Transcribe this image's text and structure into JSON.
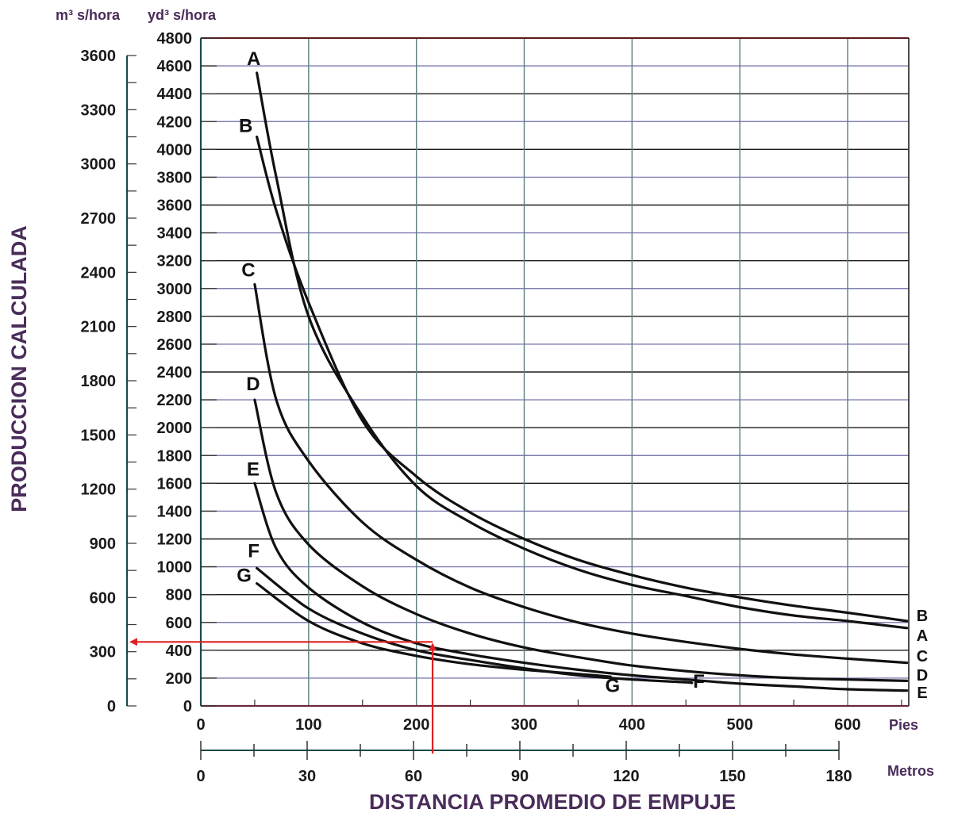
{
  "chart_data": {
    "type": "line",
    "ylabel": "PRODUCCION CALCULADA",
    "xlabel": "DISTANCIA PROMEDIO DE EMPUJE",
    "y_unit_primary": "yd³ s/hora",
    "y_unit_secondary": "m³ s/hora",
    "x_unit_primary": "Pies",
    "x_unit_secondary": "Metros",
    "ylim": [
      0,
      4800
    ],
    "xlim": [
      0,
      660
    ],
    "y_ticks": [
      "0",
      "200",
      "400",
      "600",
      "800",
      "1000",
      "1200",
      "1400",
      "1600",
      "1800",
      "2000",
      "2200",
      "2400",
      "2600",
      "2800",
      "3000",
      "3200",
      "3400",
      "3600",
      "3800",
      "4000",
      "4200",
      "4400",
      "4600",
      "4800"
    ],
    "y_secondary_ticks": [
      "0",
      "300",
      "600",
      "900",
      "1200",
      "1500",
      "1800",
      "2100",
      "2400",
      "2700",
      "3000",
      "3300",
      "3600"
    ],
    "x_ticks": [
      "0",
      "100",
      "200",
      "300",
      "400",
      "500",
      "600"
    ],
    "x_secondary_ticks": [
      "0",
      "30",
      "60",
      "90",
      "120",
      "150",
      "180"
    ],
    "grid": true,
    "series": [
      {
        "name": "A",
        "color": "#111111",
        "x": [
          52,
          70,
          100,
          150,
          200,
          250,
          300,
          350,
          400,
          450,
          500,
          550,
          600,
          655
        ],
        "y": [
          4550,
          3800,
          2800,
          2080,
          1580,
          1320,
          1130,
          980,
          870,
          790,
          710,
          650,
          610,
          560
        ]
      },
      {
        "name": "B",
        "color": "#111111",
        "x": [
          52,
          70,
          100,
          150,
          200,
          250,
          300,
          350,
          400,
          450,
          500,
          550,
          600,
          655
        ],
        "y": [
          4090,
          3560,
          2900,
          2050,
          1650,
          1390,
          1200,
          1050,
          940,
          850,
          780,
          720,
          670,
          610
        ]
      },
      {
        "name": "C",
        "color": "#111111",
        "x": [
          50,
          70,
          100,
          150,
          200,
          250,
          300,
          350,
          400,
          450,
          500,
          550,
          600,
          655
        ],
        "y": [
          3030,
          2200,
          1760,
          1320,
          1050,
          850,
          710,
          600,
          520,
          460,
          410,
          370,
          340,
          310
        ]
      },
      {
        "name": "D",
        "color": "#111111",
        "x": [
          50,
          70,
          100,
          150,
          200,
          250,
          300,
          350,
          400,
          450,
          500,
          550,
          600,
          655
        ],
        "y": [
          2200,
          1530,
          1160,
          860,
          660,
          520,
          420,
          350,
          290,
          250,
          220,
          200,
          190,
          180
        ]
      },
      {
        "name": "E",
        "color": "#111111",
        "x": [
          50,
          70,
          100,
          150,
          200,
          250,
          300,
          350,
          400,
          450,
          500,
          550,
          600,
          655
        ],
        "y": [
          1600,
          1130,
          850,
          600,
          450,
          370,
          310,
          260,
          220,
          190,
          160,
          140,
          120,
          110
        ]
      },
      {
        "name": "F",
        "color": "#111111",
        "x": [
          52,
          100,
          150,
          200,
          250,
          300,
          350,
          400,
          450,
          455
        ],
        "y": [
          990,
          700,
          520,
          400,
          330,
          270,
          220,
          190,
          170,
          165
        ]
      },
      {
        "name": "G",
        "color": "#111111",
        "x": [
          52,
          100,
          150,
          200,
          250,
          300,
          350,
          380
        ],
        "y": [
          880,
          610,
          450,
          360,
          300,
          260,
          230,
          210
        ]
      }
    ],
    "annotation_line": {
      "color": "#e02020",
      "x": 215,
      "y": 460
    }
  }
}
